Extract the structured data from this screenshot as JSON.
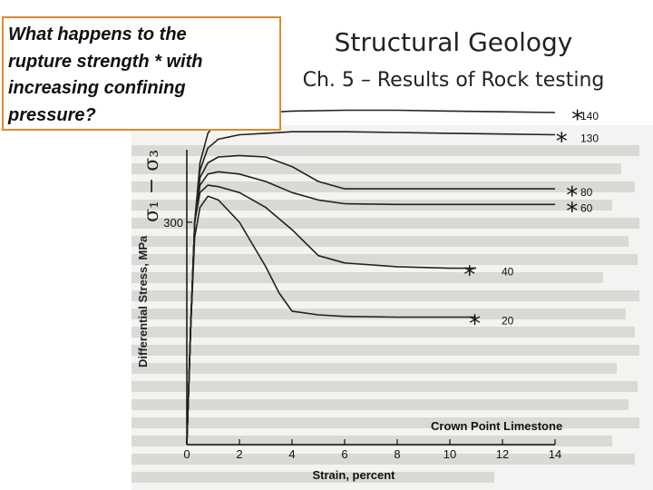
{
  "question": {
    "lines": [
      "What happens to the",
      "rupture strength",
      "with",
      "increasing confining",
      "pressure?"
    ],
    "star": "*"
  },
  "slide": {
    "title": "Structural Geology",
    "subtitle": "Ch. 5 – Results of Rock testing"
  },
  "figure": {
    "sigma_label": "σ₁ − σ₃",
    "ylabel": "Differential Stress, MPa",
    "y_tick": "300",
    "xlabel": "Strain, percent",
    "rock_label": "Crown Point Limestone",
    "colors": {
      "curve": "#222222",
      "frame": "#e0892b"
    }
  },
  "chart_data": {
    "type": "line",
    "xlabel": "Strain, percent",
    "ylabel": "Differential Stress, MPa",
    "x_ticks": [
      0,
      2,
      4,
      6,
      8,
      10,
      12,
      14
    ],
    "y_ticks": [
      300
    ],
    "series": [
      {
        "name": "140",
        "x": [
          0,
          0.15,
          0.3,
          0.5,
          0.8,
          1.2,
          2,
          3,
          4,
          6,
          8,
          10,
          12,
          14
        ],
        "y": [
          0,
          160,
          300,
          380,
          420,
          438,
          445,
          448,
          450,
          451,
          451,
          450,
          449,
          448
        ]
      },
      {
        "name": "130",
        "x": [
          0,
          0.15,
          0.3,
          0.5,
          0.8,
          1.2,
          2,
          3,
          4,
          6,
          8,
          10,
          12,
          14
        ],
        "y": [
          0,
          160,
          300,
          370,
          400,
          412,
          418,
          420,
          422,
          422,
          421,
          420,
          419,
          418
        ]
      },
      {
        "name": "80",
        "x": [
          0,
          0.15,
          0.3,
          0.5,
          0.8,
          1.2,
          2,
          3,
          4,
          5,
          6,
          8,
          10,
          12,
          14
        ],
        "y": [
          0,
          160,
          300,
          360,
          380,
          388,
          390,
          388,
          375,
          355,
          345,
          345,
          345,
          345,
          345
        ]
      },
      {
        "name": "60",
        "x": [
          0,
          0.15,
          0.3,
          0.5,
          0.8,
          1.2,
          2,
          3,
          4,
          5,
          6,
          8,
          10,
          12,
          14
        ],
        "y": [
          0,
          160,
          300,
          350,
          365,
          368,
          365,
          355,
          340,
          330,
          325,
          324,
          324,
          324,
          324
        ]
      },
      {
        "name": "40",
        "x": [
          0,
          0.15,
          0.3,
          0.5,
          0.8,
          1.2,
          2,
          3,
          4,
          5,
          6,
          8,
          10,
          11
        ],
        "y": [
          0,
          160,
          300,
          340,
          350,
          348,
          340,
          320,
          290,
          255,
          245,
          240,
          238,
          238
        ]
      },
      {
        "name": "20",
        "x": [
          0,
          0.15,
          0.3,
          0.5,
          0.8,
          1.2,
          2,
          2.5,
          3,
          3.5,
          4,
          5,
          6,
          8,
          10,
          11
        ],
        "y": [
          0,
          160,
          280,
          320,
          335,
          330,
          300,
          270,
          240,
          205,
          180,
          175,
          173,
          172,
          172,
          172
        ]
      }
    ],
    "annotations": [
      {
        "text": "*",
        "x": 14.9,
        "y": 448,
        "for": "140"
      },
      {
        "text": "*",
        "x": 14.3,
        "y": 418,
        "for": "130"
      },
      {
        "text": "*",
        "x": 14.7,
        "y": 345,
        "for": "80"
      },
      {
        "text": "*",
        "x": 14.7,
        "y": 324,
        "for": "60"
      },
      {
        "text": "*",
        "x": 10.8,
        "y": 238,
        "for": "40"
      },
      {
        "text": "*",
        "x": 11.0,
        "y": 172,
        "for": "20"
      }
    ]
  }
}
